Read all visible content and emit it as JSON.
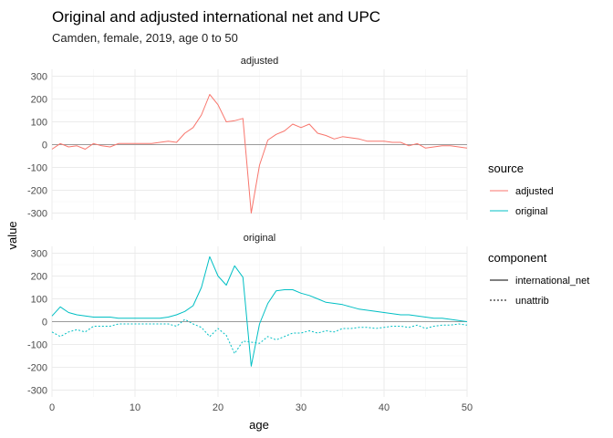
{
  "chart_data": {
    "type": "line",
    "title": "Original and adjusted international net and UPC",
    "subtitle": "Camden, female, 2019, age 0 to 50",
    "xlabel": "age",
    "ylabel": "value",
    "xlim": [
      0,
      50
    ],
    "ylim": [
      -330,
      330
    ],
    "x_ticks": [
      0,
      10,
      20,
      30,
      40,
      50
    ],
    "y_ticks": [
      -300,
      -200,
      -100,
      0,
      100,
      200,
      300
    ],
    "grid": true,
    "facet_by": "source",
    "legend_placement": "right",
    "colors": {
      "adjusted": "#F8766D",
      "original": "#00BFC4"
    },
    "legends": [
      {
        "title": "source",
        "entries": [
          "adjusted",
          "original"
        ]
      },
      {
        "title": "component",
        "entries": [
          "international_net",
          "unattrib"
        ]
      }
    ],
    "x": [
      0,
      1,
      2,
      3,
      4,
      5,
      6,
      7,
      8,
      9,
      10,
      11,
      12,
      13,
      14,
      15,
      16,
      17,
      18,
      19,
      20,
      21,
      22,
      23,
      24,
      25,
      26,
      27,
      28,
      29,
      30,
      31,
      32,
      33,
      34,
      35,
      36,
      37,
      38,
      39,
      40,
      41,
      42,
      43,
      44,
      45,
      46,
      47,
      48,
      49,
      50
    ],
    "panels": [
      {
        "label": "adjusted",
        "series": [
          {
            "source": "adjusted",
            "component": "international_net",
            "values": [
              -20,
              5,
              -10,
              -5,
              -20,
              5,
              -5,
              -10,
              5,
              5,
              5,
              5,
              5,
              10,
              15,
              10,
              50,
              75,
              130,
              220,
              175,
              100,
              105,
              115,
              -300,
              -90,
              20,
              45,
              60,
              90,
              75,
              90,
              50,
              40,
              25,
              35,
              30,
              25,
              15,
              15,
              15,
              10,
              10,
              -5,
              5,
              -15,
              -10,
              -5,
              -5,
              -10,
              -15
            ]
          }
        ]
      },
      {
        "label": "original",
        "series": [
          {
            "source": "original",
            "component": "international_net",
            "values": [
              25,
              65,
              40,
              30,
              25,
              20,
              20,
              20,
              15,
              15,
              15,
              15,
              15,
              15,
              20,
              30,
              45,
              70,
              150,
              285,
              200,
              160,
              245,
              195,
              -195,
              -10,
              80,
              135,
              140,
              140,
              125,
              115,
              100,
              85,
              80,
              75,
              65,
              55,
              50,
              45,
              40,
              35,
              30,
              30,
              25,
              20,
              15,
              15,
              10,
              5,
              0
            ]
          },
          {
            "source": "original",
            "component": "unattrib",
            "values": [
              -45,
              -65,
              -45,
              -35,
              -45,
              -20,
              -20,
              -20,
              -10,
              -10,
              -10,
              -10,
              -10,
              -10,
              -10,
              -20,
              10,
              -10,
              -25,
              -65,
              -30,
              -60,
              -140,
              -85,
              -90,
              -95,
              -65,
              -80,
              -65,
              -50,
              -50,
              -40,
              -50,
              -40,
              -45,
              -30,
              -30,
              -25,
              -25,
              -30,
              -25,
              -20,
              -20,
              -25,
              -15,
              -30,
              -20,
              -15,
              -15,
              -10,
              -15
            ]
          }
        ]
      }
    ]
  }
}
